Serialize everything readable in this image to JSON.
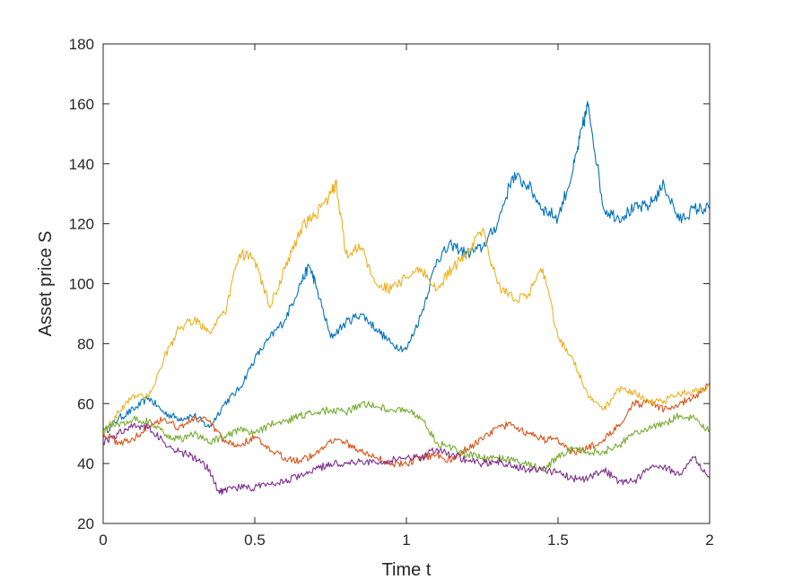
{
  "chart_data": {
    "type": "line",
    "title": "",
    "xlabel": "Time t",
    "ylabel": "Asset price S",
    "xlim": [
      0,
      2
    ],
    "ylim": [
      20,
      180
    ],
    "xticks": [
      0,
      0.5,
      1,
      1.5,
      2
    ],
    "xtick_labels": [
      "0",
      "0.5",
      "1",
      "1.5",
      "2"
    ],
    "yticks": [
      20,
      40,
      60,
      80,
      100,
      120,
      140,
      160,
      180
    ],
    "ytick_labels": [
      "20",
      "40",
      "60",
      "80",
      "100",
      "120",
      "140",
      "160",
      "180"
    ],
    "grid": false,
    "legend": "none",
    "series": [
      {
        "color": "#0072BD",
        "x": [
          0,
          0.05,
          0.1,
          0.15,
          0.2,
          0.25,
          0.3,
          0.35,
          0.4,
          0.45,
          0.5,
          0.55,
          0.6,
          0.65,
          0.68,
          0.7,
          0.75,
          0.8,
          0.85,
          0.9,
          0.95,
          1.0,
          1.05,
          1.1,
          1.15,
          1.2,
          1.25,
          1.3,
          1.35,
          1.4,
          1.45,
          1.5,
          1.55,
          1.58,
          1.6,
          1.65,
          1.7,
          1.75,
          1.8,
          1.85,
          1.9,
          1.95,
          2.0
        ],
        "y": [
          50,
          55,
          58,
          62,
          57,
          55,
          56,
          52,
          60,
          65,
          75,
          82,
          88,
          100,
          106,
          100,
          82,
          87,
          90,
          85,
          80,
          78,
          90,
          108,
          113,
          110,
          112,
          120,
          136,
          133,
          125,
          122,
          138,
          152,
          160,
          125,
          122,
          125,
          126,
          133,
          121,
          125,
          125
        ]
      },
      {
        "color": "#D95319",
        "x": [
          0,
          0.05,
          0.1,
          0.15,
          0.2,
          0.25,
          0.3,
          0.35,
          0.4,
          0.45,
          0.5,
          0.55,
          0.6,
          0.65,
          0.7,
          0.75,
          0.8,
          0.85,
          0.9,
          0.95,
          1.0,
          1.05,
          1.1,
          1.15,
          1.2,
          1.25,
          1.3,
          1.35,
          1.4,
          1.45,
          1.5,
          1.55,
          1.6,
          1.65,
          1.7,
          1.75,
          1.8,
          1.85,
          1.9,
          1.95,
          2.0
        ],
        "y": [
          50,
          47,
          48,
          53,
          55,
          52,
          55,
          54,
          47,
          46,
          49,
          44,
          42,
          41,
          43,
          48,
          47,
          44,
          42,
          40,
          40,
          42,
          43,
          41,
          45,
          48,
          52,
          53,
          50,
          48,
          48,
          44,
          45,
          48,
          53,
          60,
          60,
          58,
          60,
          62,
          67
        ]
      },
      {
        "color": "#EDB120",
        "x": [
          0,
          0.05,
          0.1,
          0.15,
          0.2,
          0.25,
          0.3,
          0.35,
          0.4,
          0.45,
          0.5,
          0.55,
          0.6,
          0.65,
          0.7,
          0.75,
          0.77,
          0.8,
          0.85,
          0.9,
          0.95,
          1.0,
          1.05,
          1.1,
          1.15,
          1.2,
          1.25,
          1.3,
          1.35,
          1.4,
          1.45,
          1.5,
          1.55,
          1.6,
          1.65,
          1.7,
          1.75,
          1.8,
          1.85,
          1.9,
          1.95,
          2.0
        ],
        "y": [
          50,
          57,
          63,
          62,
          75,
          85,
          88,
          84,
          90,
          110,
          108,
          92,
          105,
          118,
          123,
          130,
          133,
          110,
          112,
          100,
          98,
          102,
          105,
          98,
          105,
          110,
          118,
          100,
          95,
          96,
          105,
          82,
          75,
          62,
          58,
          65,
          64,
          60,
          61,
          63,
          64,
          66
        ]
      },
      {
        "color": "#77AC30",
        "x": [
          0,
          0.05,
          0.1,
          0.15,
          0.2,
          0.25,
          0.3,
          0.35,
          0.4,
          0.45,
          0.5,
          0.55,
          0.6,
          0.65,
          0.7,
          0.75,
          0.8,
          0.85,
          0.9,
          0.95,
          1.0,
          1.05,
          1.1,
          1.15,
          1.2,
          1.25,
          1.3,
          1.35,
          1.4,
          1.45,
          1.5,
          1.55,
          1.6,
          1.65,
          1.7,
          1.75,
          1.8,
          1.85,
          1.9,
          1.95,
          2.0
        ],
        "y": [
          52,
          53,
          55,
          54,
          50,
          48,
          50,
          47,
          49,
          51,
          50,
          53,
          54,
          56,
          57,
          58,
          57,
          60,
          59,
          58,
          58,
          55,
          47,
          45,
          43,
          42,
          42,
          41,
          40,
          38,
          42,
          45,
          44,
          44,
          46,
          50,
          52,
          53,
          56,
          55,
          51
        ]
      },
      {
        "color": "#7E2F8E",
        "x": [
          0,
          0.05,
          0.1,
          0.15,
          0.2,
          0.25,
          0.3,
          0.35,
          0.38,
          0.4,
          0.45,
          0.5,
          0.55,
          0.6,
          0.65,
          0.7,
          0.75,
          0.8,
          0.85,
          0.9,
          0.95,
          1.0,
          1.05,
          1.1,
          1.15,
          1.2,
          1.25,
          1.3,
          1.35,
          1.4,
          1.45,
          1.5,
          1.55,
          1.6,
          1.65,
          1.7,
          1.75,
          1.8,
          1.85,
          1.9,
          1.95,
          2.0
        ],
        "y": [
          47,
          50,
          53,
          52,
          47,
          44,
          42,
          38,
          31,
          31,
          32,
          32,
          33,
          34,
          36,
          38,
          40,
          40,
          41,
          40,
          41,
          42,
          42,
          45,
          43,
          41,
          40,
          41,
          39,
          38,
          38,
          37,
          35,
          35,
          38,
          34,
          34,
          38,
          39,
          36,
          42,
          35
        ]
      }
    ]
  }
}
